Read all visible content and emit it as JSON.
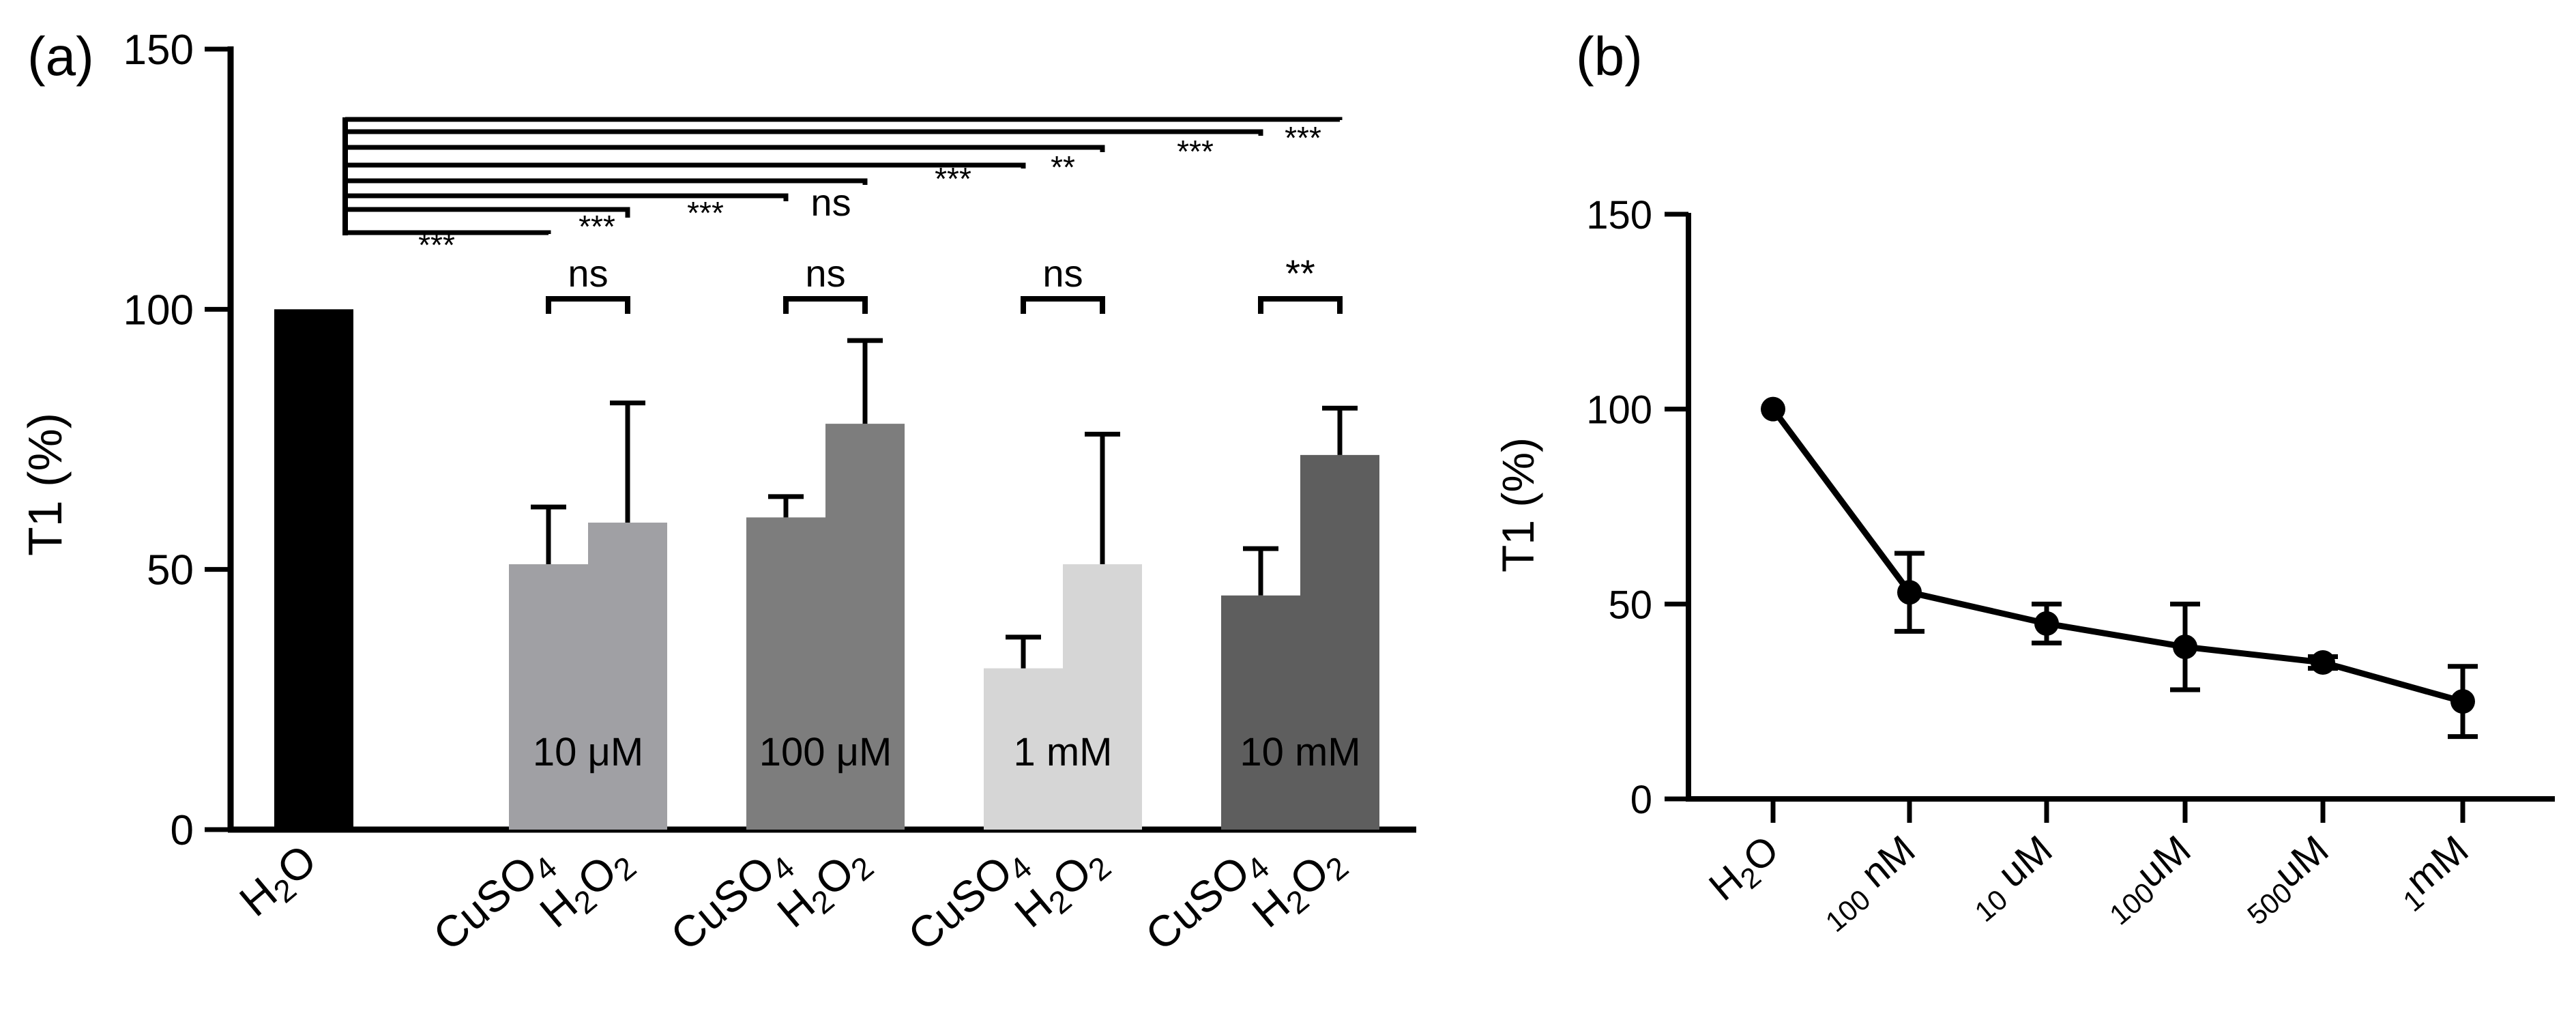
{
  "panels": {
    "a": {
      "label": "(a)"
    },
    "b": {
      "label": "(b)"
    }
  },
  "chart_data": [
    {
      "panel": "a",
      "type": "bar",
      "title": "",
      "xlabel": "",
      "ylabel": "T1 (%)",
      "ylim": [
        0,
        150
      ],
      "yticks": [
        0,
        50,
        100,
        150
      ],
      "grid": false,
      "bars": [
        {
          "category": "H2O",
          "group": "",
          "value": 100,
          "error": 0,
          "color": "#000000"
        },
        {
          "category": "CuSO4",
          "group": "10 μM",
          "value": 51,
          "error": 11,
          "color": "#a0a0a4"
        },
        {
          "category": "H2O2",
          "group": "10 μM",
          "value": 59,
          "error": 23,
          "color": "#a0a0a4"
        },
        {
          "category": "CuSO4",
          "group": "100 μM",
          "value": 60,
          "error": 4,
          "color": "#7d7d7d"
        },
        {
          "category": "H2O2",
          "group": "100 μM",
          "value": 78,
          "error": 16,
          "color": "#7d7d7d"
        },
        {
          "category": "CuSO4",
          "group": "1 mM",
          "value": 31,
          "error": 6,
          "color": "#d6d6d6"
        },
        {
          "category": "H2O2",
          "group": "1 mM",
          "value": 51,
          "error": 25,
          "color": "#d6d6d6"
        },
        {
          "category": "CuSO4",
          "group": "10 mM",
          "value": 45,
          "error": 9,
          "color": "#5e5e5e"
        },
        {
          "category": "H2O2",
          "group": "10 mM",
          "value": 72,
          "error": 9,
          "color": "#5e5e5e"
        }
      ],
      "group_labels": [
        "10 μM",
        "100 μM",
        "1 mM",
        "10 mM"
      ],
      "pair_significance": [
        {
          "pair": [
            1,
            2
          ],
          "text": "ns"
        },
        {
          "pair": [
            3,
            4
          ],
          "text": "ns"
        },
        {
          "pair": [
            5,
            6
          ],
          "text": "ns"
        },
        {
          "pair": [
            7,
            8
          ],
          "text": "**"
        }
      ],
      "comparisons_vs_H2O": [
        {
          "to_bar": 1,
          "text": "***"
        },
        {
          "to_bar": 2,
          "text": "***"
        },
        {
          "to_bar": 3,
          "text": "***"
        },
        {
          "to_bar": 4,
          "text": "ns"
        },
        {
          "to_bar": 5,
          "text": "***"
        },
        {
          "to_bar": 6,
          "text": "**"
        },
        {
          "to_bar": 7,
          "text": "***"
        },
        {
          "to_bar": 8,
          "text": "***"
        }
      ]
    },
    {
      "panel": "b",
      "type": "line",
      "title": "",
      "xlabel": "",
      "ylabel": "T1 (%)",
      "ylim": [
        0,
        150
      ],
      "yticks": [
        0,
        50,
        100,
        150
      ],
      "grid": false,
      "categories": [
        "H2O",
        "100 nM",
        "10 uM",
        "100uM",
        "500uM",
        "1mM"
      ],
      "series": [
        {
          "name": "T1",
          "values": [
            100,
            53,
            45,
            39,
            35,
            25
          ],
          "errors": [
            0,
            10,
            5,
            11,
            1.5,
            9
          ],
          "color": "#000000"
        }
      ]
    }
  ]
}
